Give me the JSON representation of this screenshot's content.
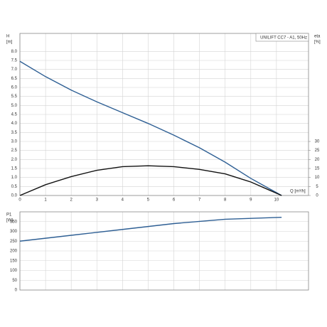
{
  "chart_data": [
    {
      "type": "line",
      "legend_text": "UNILIFT CC7 - A1, 50Hz",
      "ylabel": "H",
      "yunit": "[m]",
      "y2label": "eta",
      "y2unit": "[%]",
      "xlabel": "Q [m³/h]",
      "x": [
        0,
        1,
        2,
        3,
        4,
        5,
        6,
        7,
        8,
        9,
        10.2
      ],
      "xlim": [
        0,
        11.25
      ],
      "xticks": [
        0,
        1,
        2,
        3,
        4,
        5,
        6,
        7,
        8,
        9,
        10
      ],
      "ylim": [
        0,
        9
      ],
      "yticks": [
        {
          "value": 0,
          "label": "0.0"
        },
        {
          "value": 0.5,
          "label": "0.5"
        },
        {
          "value": 1,
          "label": "1.0"
        },
        {
          "value": 1.5,
          "label": "1.5"
        },
        {
          "value": 2,
          "label": "2.0"
        },
        {
          "value": 2.5,
          "label": "2.5"
        },
        {
          "value": 3,
          "label": "3.0"
        },
        {
          "value": 3.5,
          "label": "3.5"
        },
        {
          "value": 4,
          "label": "4.0"
        },
        {
          "value": 4.5,
          "label": "4.5"
        },
        {
          "value": 5,
          "label": "5.0"
        },
        {
          "value": 5.5,
          "label": "5.5"
        },
        {
          "value": 6,
          "label": "6.0"
        },
        {
          "value": 6.5,
          "label": "6.5"
        },
        {
          "value": 7,
          "label": "7.0"
        },
        {
          "value": 7.5,
          "label": "7.5"
        },
        {
          "value": 8,
          "label": "8.0"
        }
      ],
      "y2lim": [
        0,
        90
      ],
      "y2ticks": [
        0,
        5,
        10,
        15,
        20,
        25,
        30
      ],
      "grid": true,
      "series": [
        {
          "color": "#2e5f94",
          "values": [
            7.45,
            6.6,
            5.85,
            5.2,
            4.6,
            4.0,
            3.35,
            2.65,
            1.85,
            0.95,
            0
          ]
        },
        {
          "color": "#111111",
          "axis": "y2",
          "values": [
            0,
            6,
            10.5,
            14,
            16,
            16.5,
            16,
            14.5,
            12,
            7.5,
            0
          ]
        }
      ]
    },
    {
      "type": "line",
      "ylabel": "P1",
      "yunit": "[W]",
      "x": [
        0,
        2,
        4,
        6,
        8,
        10.2
      ],
      "xlim": [
        0,
        11.25
      ],
      "xticks": [
        0,
        1,
        2,
        3,
        4,
        5,
        6,
        7,
        8,
        9,
        10
      ],
      "ylim": [
        0,
        400
      ],
      "yticks": [
        0,
        50,
        100,
        150,
        200,
        250,
        300,
        350
      ],
      "grid": true,
      "series": [
        {
          "color": "#2e5f94",
          "values": [
            250,
            280,
            310,
            340,
            362,
            372
          ]
        }
      ]
    }
  ]
}
